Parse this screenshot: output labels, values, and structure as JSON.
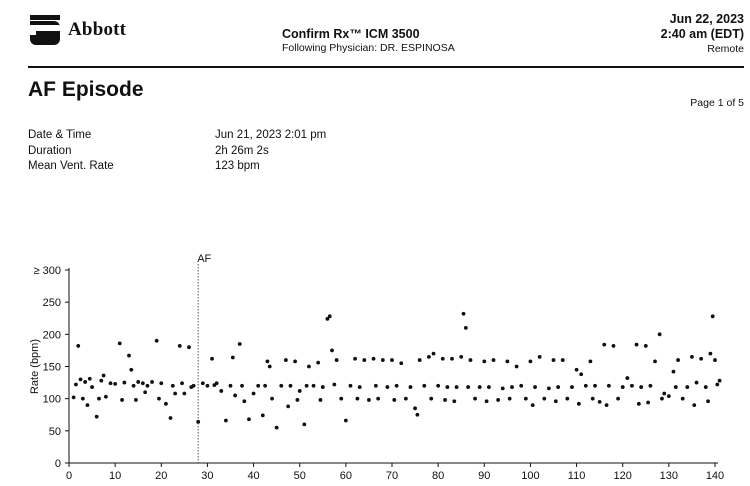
{
  "header": {
    "brand": "Abbott",
    "device": "Confirm Rx™ ICM 3500",
    "physician": "Following Physician: DR. ESPINOSA",
    "date": "Jun 22, 2023",
    "time": "2:40 am (EDT)",
    "mode": "Remote"
  },
  "episode": {
    "title": "AF Episode",
    "page": "Page 1 of 5",
    "details": [
      {
        "label": "Date & Time",
        "value": "Jun 21, 2023  2:01 pm"
      },
      {
        "label": "Duration",
        "value": "2h 26m 2s"
      },
      {
        "label": "Mean Vent. Rate",
        "value": "123 bpm"
      }
    ]
  },
  "chart_data": {
    "type": "scatter",
    "ylabel": "Rate (bpm)",
    "xlim": [
      0,
      140
    ],
    "ylim": [
      0,
      300
    ],
    "xticks": [
      "0",
      "10",
      "20",
      "30",
      "40",
      "50",
      "60",
      "70",
      "80",
      "90",
      "100",
      "110",
      "120",
      "130",
      "140"
    ],
    "yticks": [
      "0",
      "50",
      "100",
      "150",
      "200",
      "250",
      "≥ 300"
    ],
    "annotation": {
      "label": "AF",
      "x": 28
    },
    "grid": false,
    "points": [
      [
        1,
        102
      ],
      [
        1.5,
        122
      ],
      [
        2,
        182
      ],
      [
        2.5,
        130
      ],
      [
        3,
        100
      ],
      [
        3.5,
        126
      ],
      [
        4,
        90
      ],
      [
        4.5,
        131
      ],
      [
        5,
        118
      ],
      [
        6,
        72
      ],
      [
        6.5,
        100
      ],
      [
        7,
        128
      ],
      [
        7.5,
        136
      ],
      [
        8,
        103
      ],
      [
        9,
        124
      ],
      [
        10,
        123
      ],
      [
        11,
        186
      ],
      [
        11.5,
        98
      ],
      [
        12,
        125
      ],
      [
        13,
        167
      ],
      [
        13.5,
        145
      ],
      [
        14,
        120
      ],
      [
        14.5,
        98
      ],
      [
        15,
        126
      ],
      [
        16,
        124
      ],
      [
        16.5,
        110
      ],
      [
        17,
        120
      ],
      [
        18,
        126
      ],
      [
        19,
        190
      ],
      [
        19.5,
        100
      ],
      [
        20,
        124
      ],
      [
        21,
        92
      ],
      [
        22,
        70
      ],
      [
        22.5,
        120
      ],
      [
        23,
        108
      ],
      [
        24,
        182
      ],
      [
        24.5,
        124
      ],
      [
        25,
        108
      ],
      [
        26,
        180
      ],
      [
        26.5,
        118
      ],
      [
        27,
        120
      ],
      [
        28,
        64
      ],
      [
        29,
        124
      ],
      [
        30,
        120
      ],
      [
        31,
        162
      ],
      [
        31.5,
        121
      ],
      [
        32,
        124
      ],
      [
        33,
        112
      ],
      [
        34,
        66
      ],
      [
        35,
        120
      ],
      [
        35.5,
        164
      ],
      [
        36,
        105
      ],
      [
        37,
        185
      ],
      [
        37.5,
        120
      ],
      [
        38,
        96
      ],
      [
        39,
        68
      ],
      [
        40,
        108
      ],
      [
        41,
        120
      ],
      [
        42,
        74
      ],
      [
        42.5,
        120
      ],
      [
        43,
        158
      ],
      [
        43.5,
        150
      ],
      [
        44,
        100
      ],
      [
        45,
        55
      ],
      [
        46,
        120
      ],
      [
        47,
        160
      ],
      [
        47.5,
        88
      ],
      [
        48,
        120
      ],
      [
        49,
        158
      ],
      [
        49.5,
        98
      ],
      [
        50,
        112
      ],
      [
        51,
        60
      ],
      [
        51.5,
        120
      ],
      [
        52,
        150
      ],
      [
        53,
        120
      ],
      [
        54,
        156
      ],
      [
        54.5,
        98
      ],
      [
        55,
        118
      ],
      [
        56,
        224
      ],
      [
        56.5,
        228
      ],
      [
        57,
        175
      ],
      [
        57.5,
        122
      ],
      [
        58,
        160
      ],
      [
        59,
        100
      ],
      [
        60,
        66
      ],
      [
        61,
        120
      ],
      [
        62,
        162
      ],
      [
        62.5,
        100
      ],
      [
        63,
        118
      ],
      [
        64,
        160
      ],
      [
        65,
        98
      ],
      [
        66,
        162
      ],
      [
        66.5,
        120
      ],
      [
        67,
        100
      ],
      [
        68,
        160
      ],
      [
        69,
        118
      ],
      [
        70,
        160
      ],
      [
        70.5,
        98
      ],
      [
        71,
        120
      ],
      [
        72,
        155
      ],
      [
        73,
        100
      ],
      [
        74,
        118
      ],
      [
        75,
        85
      ],
      [
        75.5,
        75
      ],
      [
        76,
        160
      ],
      [
        77,
        120
      ],
      [
        78,
        165
      ],
      [
        78.5,
        100
      ],
      [
        79,
        170
      ],
      [
        80,
        120
      ],
      [
        81,
        162
      ],
      [
        81.5,
        98
      ],
      [
        82,
        118
      ],
      [
        83,
        162
      ],
      [
        83.5,
        96
      ],
      [
        84,
        118
      ],
      [
        85,
        165
      ],
      [
        85.5,
        232
      ],
      [
        86,
        210
      ],
      [
        86.5,
        118
      ],
      [
        87,
        160
      ],
      [
        88,
        100
      ],
      [
        89,
        118
      ],
      [
        90,
        158
      ],
      [
        90.5,
        96
      ],
      [
        91,
        118
      ],
      [
        92,
        160
      ],
      [
        93,
        98
      ],
      [
        94,
        116
      ],
      [
        95,
        158
      ],
      [
        95.5,
        100
      ],
      [
        96,
        118
      ],
      [
        97,
        150
      ],
      [
        98,
        120
      ],
      [
        99,
        100
      ],
      [
        100,
        158
      ],
      [
        100.5,
        90
      ],
      [
        101,
        118
      ],
      [
        102,
        165
      ],
      [
        103,
        100
      ],
      [
        104,
        116
      ],
      [
        105,
        160
      ],
      [
        105.5,
        96
      ],
      [
        106,
        118
      ],
      [
        107,
        160
      ],
      [
        108,
        100
      ],
      [
        109,
        118
      ],
      [
        110,
        145
      ],
      [
        110.5,
        92
      ],
      [
        111,
        138
      ],
      [
        112,
        120
      ],
      [
        113,
        158
      ],
      [
        113.5,
        100
      ],
      [
        114,
        120
      ],
      [
        115,
        95
      ],
      [
        116,
        184
      ],
      [
        116.5,
        90
      ],
      [
        117,
        120
      ],
      [
        118,
        182
      ],
      [
        119,
        100
      ],
      [
        120,
        118
      ],
      [
        121,
        132
      ],
      [
        122,
        120
      ],
      [
        123,
        184
      ],
      [
        123.5,
        92
      ],
      [
        124,
        118
      ],
      [
        125,
        182
      ],
      [
        125.5,
        94
      ],
      [
        126,
        120
      ],
      [
        127,
        158
      ],
      [
        128,
        200
      ],
      [
        128.5,
        100
      ],
      [
        129,
        108
      ],
      [
        130,
        104
      ],
      [
        131,
        142
      ],
      [
        131.5,
        118
      ],
      [
        132,
        160
      ],
      [
        133,
        100
      ],
      [
        134,
        118
      ],
      [
        135,
        165
      ],
      [
        135.5,
        90
      ],
      [
        136,
        125
      ],
      [
        137,
        162
      ],
      [
        138,
        118
      ],
      [
        138.5,
        96
      ],
      [
        139,
        170
      ],
      [
        139.5,
        228
      ],
      [
        140,
        160
      ],
      [
        140.5,
        122
      ],
      [
        141,
        128
      ]
    ]
  }
}
